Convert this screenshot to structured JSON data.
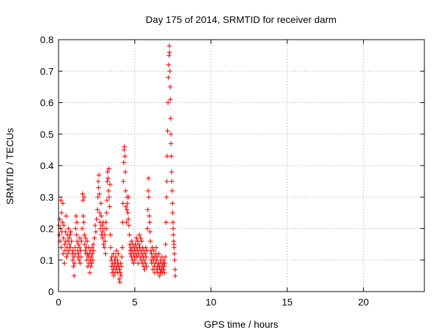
{
  "chart_data": {
    "type": "scatter",
    "title": "Day 175 of 2014, SRMTID for receiver darm",
    "xlabel": "GPS time / hours",
    "ylabel": "SRMTID / TECUs",
    "xlim": [
      0,
      24
    ],
    "ylim": [
      0,
      0.8
    ],
    "xticks": [
      0,
      5,
      10,
      15,
      20
    ],
    "xtick_labels": [
      "0",
      "5",
      "10",
      "15",
      "20"
    ],
    "yticks": [
      0,
      0.1,
      0.2,
      0.3,
      0.4,
      0.5,
      0.6,
      0.7,
      0.8
    ],
    "ytick_labels": [
      "0",
      "0.1",
      "0.2",
      "0.3",
      "0.4",
      "0.5",
      "0.6",
      "0.7",
      "0.8"
    ],
    "grid": true,
    "marker": "+",
    "color": "#ff0000",
    "series": [
      {
        "name": "darm",
        "points": [
          [
            0.02,
            0.21
          ],
          [
            0.05,
            0.18
          ],
          [
            0.08,
            0.23
          ],
          [
            0.1,
            0.16
          ],
          [
            0.12,
            0.2
          ],
          [
            0.15,
            0.29
          ],
          [
            0.18,
            0.14
          ],
          [
            0.2,
            0.25
          ],
          [
            0.22,
            0.19
          ],
          [
            0.25,
            0.22
          ],
          [
            0.28,
            0.28
          ],
          [
            0.3,
            0.12
          ],
          [
            0.32,
            0.17
          ],
          [
            0.35,
            0.21
          ],
          [
            0.38,
            0.09
          ],
          [
            0.4,
            0.15
          ],
          [
            0.42,
            0.13
          ],
          [
            0.45,
            0.19
          ],
          [
            0.48,
            0.16
          ],
          [
            0.5,
            0.24
          ],
          [
            0.52,
            0.11
          ],
          [
            0.55,
            0.14
          ],
          [
            0.58,
            0.18
          ],
          [
            0.6,
            0.12
          ],
          [
            0.62,
            0.16
          ],
          [
            0.65,
            0.2
          ],
          [
            0.68,
            0.13
          ],
          [
            0.7,
            0.17
          ],
          [
            0.72,
            0.15
          ],
          [
            0.75,
            0.18
          ],
          [
            0.78,
            0.14
          ],
          [
            0.8,
            0.19
          ],
          [
            0.85,
            0.16
          ],
          [
            0.9,
            0.12
          ],
          [
            0.92,
            0.1
          ],
          [
            0.95,
            0.13
          ],
          [
            0.98,
            0.08
          ],
          [
            1.0,
            0.11
          ],
          [
            1.02,
            0.05
          ],
          [
            1.05,
            0.09
          ],
          [
            1.08,
            0.14
          ],
          [
            1.1,
            0.12
          ],
          [
            1.12,
            0.2
          ],
          [
            1.15,
            0.24
          ],
          [
            1.18,
            0.18
          ],
          [
            1.2,
            0.22
          ],
          [
            1.22,
            0.16
          ],
          [
            1.25,
            0.13
          ],
          [
            1.28,
            0.11
          ],
          [
            1.3,
            0.15
          ],
          [
            1.32,
            0.12
          ],
          [
            1.35,
            0.1
          ],
          [
            1.38,
            0.14
          ],
          [
            1.4,
            0.17
          ],
          [
            1.42,
            0.09
          ],
          [
            1.45,
            0.13
          ],
          [
            1.48,
            0.11
          ],
          [
            1.5,
            0.16
          ],
          [
            1.55,
            0.2
          ],
          [
            1.58,
            0.31
          ],
          [
            1.6,
            0.29
          ],
          [
            1.62,
            0.24
          ],
          [
            1.65,
            0.22
          ],
          [
            1.68,
            0.3
          ],
          [
            1.7,
            0.18
          ],
          [
            1.72,
            0.15
          ],
          [
            1.75,
            0.13
          ],
          [
            1.78,
            0.17
          ],
          [
            1.8,
            0.12
          ],
          [
            1.82,
            0.14
          ],
          [
            1.85,
            0.1
          ],
          [
            1.88,
            0.16
          ],
          [
            1.9,
            0.12
          ],
          [
            1.92,
            0.08
          ],
          [
            1.95,
            0.11
          ],
          [
            1.98,
            0.14
          ],
          [
            2.0,
            0.09
          ],
          [
            2.02,
            0.12
          ],
          [
            2.05,
            0.06
          ],
          [
            2.08,
            0.1
          ],
          [
            2.1,
            0.13
          ],
          [
            2.12,
            0.08
          ],
          [
            2.15,
            0.11
          ],
          [
            2.18,
            0.09
          ],
          [
            2.2,
            0.14
          ],
          [
            2.22,
            0.12
          ],
          [
            2.25,
            0.1
          ],
          [
            2.28,
            0.15
          ],
          [
            2.3,
            0.13
          ],
          [
            2.35,
            0.17
          ],
          [
            2.4,
            0.21
          ],
          [
            2.45,
            0.19
          ],
          [
            2.5,
            0.23
          ],
          [
            2.55,
            0.26
          ],
          [
            2.58,
            0.3
          ],
          [
            2.6,
            0.35
          ],
          [
            2.62,
            0.33
          ],
          [
            2.65,
            0.37
          ],
          [
            2.68,
            0.31
          ],
          [
            2.7,
            0.25
          ],
          [
            2.72,
            0.22
          ],
          [
            2.75,
            0.2
          ],
          [
            2.78,
            0.28
          ],
          [
            2.8,
            0.24
          ],
          [
            2.82,
            0.18
          ],
          [
            2.85,
            0.21
          ],
          [
            2.88,
            0.19
          ],
          [
            2.9,
            0.17
          ],
          [
            2.92,
            0.22
          ],
          [
            2.95,
            0.15
          ],
          [
            2.98,
            0.2
          ],
          [
            3.0,
            0.14
          ],
          [
            3.02,
            0.18
          ],
          [
            3.05,
            0.16
          ],
          [
            3.08,
            0.12
          ],
          [
            3.1,
            0.22
          ],
          [
            3.12,
            0.2
          ],
          [
            3.15,
            0.25
          ],
          [
            3.18,
            0.29
          ],
          [
            3.2,
            0.35
          ],
          [
            3.22,
            0.38
          ],
          [
            3.25,
            0.36
          ],
          [
            3.28,
            0.32
          ],
          [
            3.3,
            0.39
          ],
          [
            3.32,
            0.3
          ],
          [
            3.35,
            0.27
          ],
          [
            3.38,
            0.34
          ],
          [
            3.4,
            0.18
          ],
          [
            3.42,
            0.14
          ],
          [
            3.45,
            0.1
          ],
          [
            3.48,
            0.08
          ],
          [
            3.5,
            0.11
          ],
          [
            3.52,
            0.06
          ],
          [
            3.55,
            0.09
          ],
          [
            3.58,
            0.07
          ],
          [
            3.6,
            0.12
          ],
          [
            3.62,
            0.05
          ],
          [
            3.65,
            0.08
          ],
          [
            3.68,
            0.1
          ],
          [
            3.7,
            0.06
          ],
          [
            3.72,
            0.09
          ],
          [
            3.75,
            0.11
          ],
          [
            3.78,
            0.07
          ],
          [
            3.8,
            0.13
          ],
          [
            3.82,
            0.08
          ],
          [
            3.85,
            0.1
          ],
          [
            3.88,
            0.06
          ],
          [
            3.9,
            0.09
          ],
          [
            3.92,
            0.12
          ],
          [
            3.95,
            0.08
          ],
          [
            3.98,
            0.04
          ],
          [
            4.0,
            0.07
          ],
          [
            4.02,
            0.03
          ],
          [
            4.05,
            0.06
          ],
          [
            4.08,
            0.09
          ],
          [
            4.1,
            0.05
          ],
          [
            4.12,
            0.08
          ],
          [
            4.15,
            0.11
          ],
          [
            4.18,
            0.14
          ],
          [
            4.2,
            0.22
          ],
          [
            4.22,
            0.28
          ],
          [
            4.25,
            0.35
          ],
          [
            4.28,
            0.41
          ],
          [
            4.3,
            0.45
          ],
          [
            4.32,
            0.46
          ],
          [
            4.35,
            0.43
          ],
          [
            4.38,
            0.38
          ],
          [
            4.4,
            0.32
          ],
          [
            4.42,
            0.27
          ],
          [
            4.45,
            0.22
          ],
          [
            4.48,
            0.26
          ],
          [
            4.5,
            0.3
          ],
          [
            4.52,
            0.28
          ],
          [
            4.55,
            0.25
          ],
          [
            4.58,
            0.23
          ],
          [
            4.6,
            0.3
          ],
          [
            4.62,
            0.21
          ],
          [
            4.65,
            0.18
          ],
          [
            4.68,
            0.15
          ],
          [
            4.7,
            0.13
          ],
          [
            4.72,
            0.12
          ],
          [
            4.75,
            0.14
          ],
          [
            4.78,
            0.11
          ],
          [
            4.8,
            0.16
          ],
          [
            4.82,
            0.13
          ],
          [
            4.85,
            0.1
          ],
          [
            4.88,
            0.15
          ],
          [
            4.9,
            0.12
          ],
          [
            4.92,
            0.09
          ],
          [
            4.95,
            0.14
          ],
          [
            4.98,
            0.11
          ],
          [
            5.0,
            0.13
          ],
          [
            5.02,
            0.1
          ],
          [
            5.05,
            0.15
          ],
          [
            5.08,
            0.12
          ],
          [
            5.1,
            0.17
          ],
          [
            5.12,
            0.14
          ],
          [
            5.15,
            0.11
          ],
          [
            5.18,
            0.16
          ],
          [
            5.2,
            0.13
          ],
          [
            5.22,
            0.09
          ],
          [
            5.25,
            0.12
          ],
          [
            5.28,
            0.15
          ],
          [
            5.3,
            0.18
          ],
          [
            5.32,
            0.14
          ],
          [
            5.35,
            0.11
          ],
          [
            5.38,
            0.17
          ],
          [
            5.4,
            0.13
          ],
          [
            5.42,
            0.1
          ],
          [
            5.45,
            0.16
          ],
          [
            5.48,
            0.12
          ],
          [
            5.5,
            0.09
          ],
          [
            5.52,
            0.14
          ],
          [
            5.55,
            0.11
          ],
          [
            5.58,
            0.08
          ],
          [
            5.6,
            0.13
          ],
          [
            5.62,
            0.1
          ],
          [
            5.65,
            0.07
          ],
          [
            5.68,
            0.12
          ],
          [
            5.7,
            0.09
          ],
          [
            5.72,
            0.14
          ],
          [
            5.75,
            0.11
          ],
          [
            5.78,
            0.08
          ],
          [
            5.8,
            0.13
          ],
          [
            5.82,
            0.2
          ],
          [
            5.85,
            0.26
          ],
          [
            5.88,
            0.32
          ],
          [
            5.9,
            0.36
          ],
          [
            5.92,
            0.3
          ],
          [
            5.95,
            0.24
          ],
          [
            5.98,
            0.22
          ],
          [
            6.0,
            0.19
          ],
          [
            6.02,
            0.16
          ],
          [
            6.05,
            0.13
          ],
          [
            6.08,
            0.1
          ],
          [
            6.1,
            0.12
          ],
          [
            6.12,
            0.09
          ],
          [
            6.15,
            0.14
          ],
          [
            6.18,
            0.11
          ],
          [
            6.2,
            0.07
          ],
          [
            6.22,
            0.1
          ],
          [
            6.25,
            0.13
          ],
          [
            6.28,
            0.08
          ],
          [
            6.3,
            0.11
          ],
          [
            6.32,
            0.06
          ],
          [
            6.35,
            0.09
          ],
          [
            6.38,
            0.12
          ],
          [
            6.4,
            0.14
          ],
          [
            6.42,
            0.1
          ],
          [
            6.45,
            0.07
          ],
          [
            6.48,
            0.11
          ],
          [
            6.5,
            0.08
          ],
          [
            6.52,
            0.06
          ],
          [
            6.55,
            0.09
          ],
          [
            6.58,
            0.12
          ],
          [
            6.6,
            0.08
          ],
          [
            6.62,
            0.05
          ],
          [
            6.65,
            0.07
          ],
          [
            6.68,
            0.1
          ],
          [
            6.7,
            0.06
          ],
          [
            6.72,
            0.09
          ],
          [
            6.75,
            0.07
          ],
          [
            6.78,
            0.11
          ],
          [
            6.8,
            0.08
          ],
          [
            6.82,
            0.06
          ],
          [
            6.85,
            0.09
          ],
          [
            6.88,
            0.07
          ],
          [
            6.9,
            0.1
          ],
          [
            6.92,
            0.08
          ],
          [
            6.95,
            0.06
          ],
          [
            6.98,
            0.09
          ],
          [
            7.0,
            0.11
          ],
          [
            7.02,
            0.15
          ],
          [
            7.05,
            0.22
          ],
          [
            7.08,
            0.3
          ],
          [
            7.1,
            0.35
          ],
          [
            7.12,
            0.43
          ],
          [
            7.15,
            0.51
          ],
          [
            7.18,
            0.6
          ],
          [
            7.2,
            0.68
          ],
          [
            7.22,
            0.72
          ],
          [
            7.25,
            0.75
          ],
          [
            7.27,
            0.78
          ],
          [
            7.28,
            0.76
          ],
          [
            7.3,
            0.7
          ],
          [
            7.32,
            0.65
          ],
          [
            7.33,
            0.61
          ],
          [
            7.35,
            0.55
          ],
          [
            7.37,
            0.5
          ],
          [
            7.38,
            0.47
          ],
          [
            7.4,
            0.43
          ],
          [
            7.42,
            0.38
          ],
          [
            7.43,
            0.35
          ],
          [
            7.45,
            0.32
          ],
          [
            7.47,
            0.28
          ],
          [
            7.48,
            0.25
          ],
          [
            7.5,
            0.22
          ],
          [
            7.52,
            0.2
          ],
          [
            7.53,
            0.18
          ],
          [
            7.55,
            0.16
          ],
          [
            7.57,
            0.15
          ],
          [
            7.58,
            0.14
          ],
          [
            7.6,
            0.12
          ],
          [
            7.62,
            0.1
          ],
          [
            7.64,
            0.07
          ],
          [
            7.65,
            0.05
          ]
        ]
      }
    ]
  }
}
